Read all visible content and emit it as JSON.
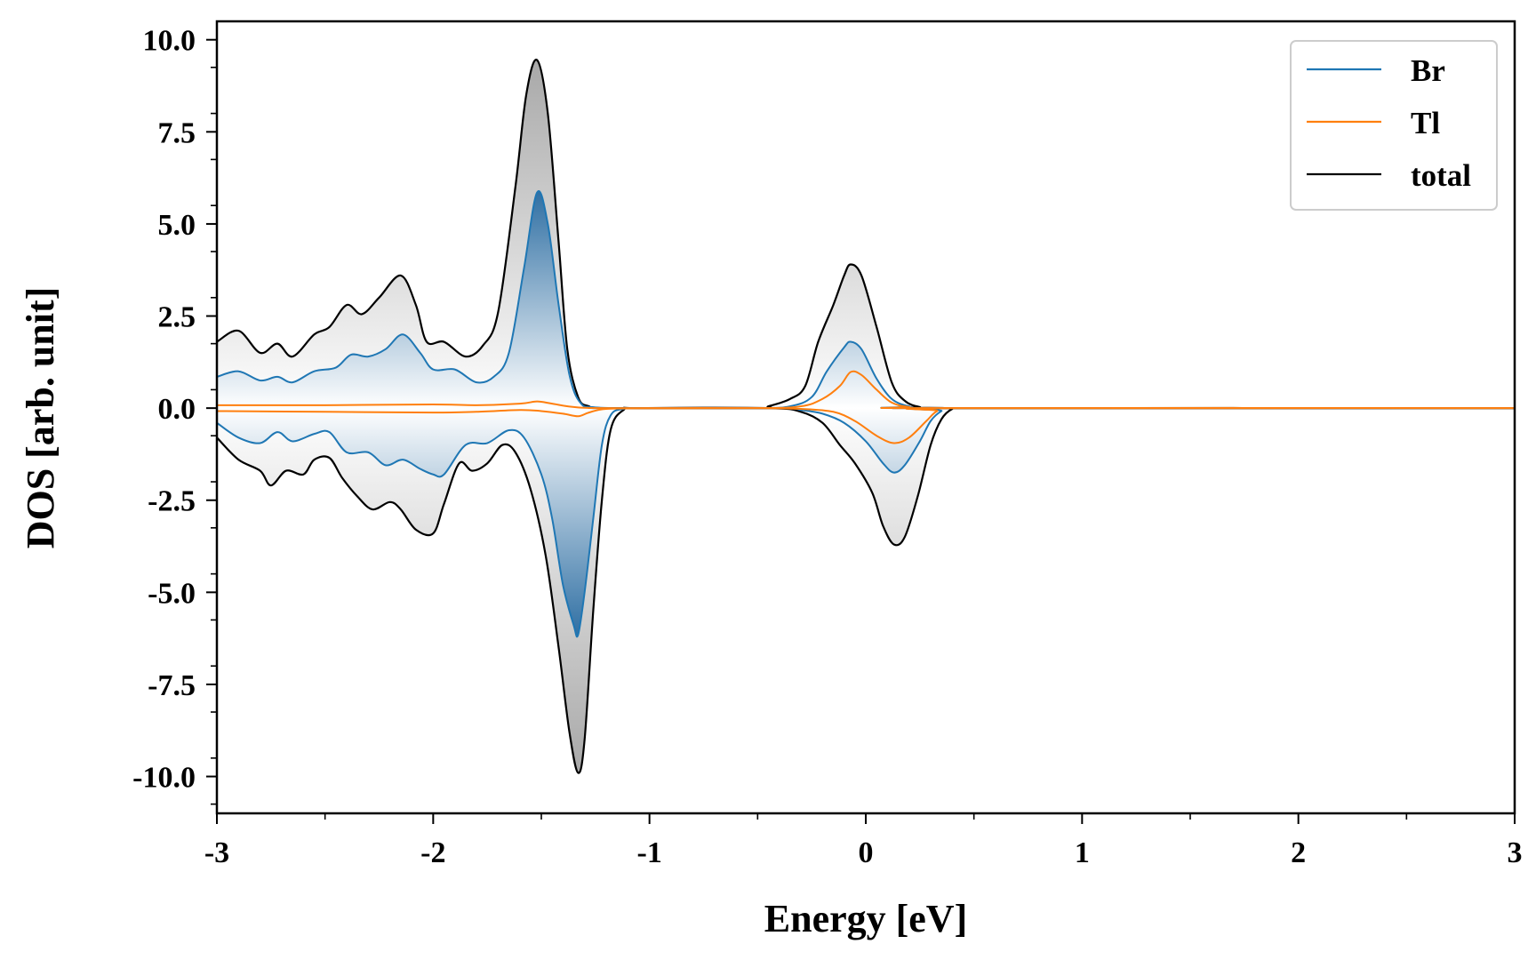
{
  "chart_data": {
    "type": "line",
    "xlabel": "Energy [eV]",
    "ylabel": "DOS [arb. unit]",
    "xlim": [
      -3,
      3
    ],
    "ylim": [
      -11,
      10.5
    ],
    "x_ticks": [
      -3,
      -2,
      -1,
      0,
      1,
      2,
      3
    ],
    "x_tick_labels": [
      "-3",
      "-2",
      "-1",
      "0",
      "1",
      "2",
      "3"
    ],
    "y_ticks": [
      10,
      7.5,
      5,
      2.5,
      0,
      -2.5,
      -5,
      -7.5,
      -10
    ],
    "y_tick_labels": [
      "10.0",
      "7.5",
      "5.0",
      "2.5",
      "0.0",
      "-2.5",
      "-5.0",
      "-7.5",
      "-10.0"
    ],
    "grid": false,
    "legend_position": "top-right",
    "colors": {
      "Br": "#1f77b4",
      "Tl": "#ff7f0e",
      "total": "#000000",
      "total_fill": "#bdbdbd",
      "br_fill": "#2f6fa3"
    },
    "series": [
      {
        "name": "Br",
        "spin": "up",
        "points": [
          [
            -3.0,
            0.85
          ],
          [
            -2.9,
            1.0
          ],
          [
            -2.8,
            0.75
          ],
          [
            -2.72,
            0.85
          ],
          [
            -2.65,
            0.7
          ],
          [
            -2.55,
            1.0
          ],
          [
            -2.45,
            1.1
          ],
          [
            -2.38,
            1.45
          ],
          [
            -2.3,
            1.4
          ],
          [
            -2.22,
            1.6
          ],
          [
            -2.14,
            2.0
          ],
          [
            -2.06,
            1.5
          ],
          [
            -2.0,
            1.05
          ],
          [
            -1.9,
            1.05
          ],
          [
            -1.8,
            0.7
          ],
          [
            -1.72,
            0.85
          ],
          [
            -1.65,
            1.5
          ],
          [
            -1.58,
            3.8
          ],
          [
            -1.52,
            5.85
          ],
          [
            -1.47,
            5.0
          ],
          [
            -1.42,
            2.8
          ],
          [
            -1.37,
            0.9
          ],
          [
            -1.32,
            0.15
          ],
          [
            -1.25,
            0.02
          ],
          [
            -1.0,
            0.0
          ],
          [
            -0.5,
            0.0
          ],
          [
            -0.35,
            0.05
          ],
          [
            -0.25,
            0.3
          ],
          [
            -0.18,
            1.0
          ],
          [
            -0.1,
            1.65
          ],
          [
            -0.07,
            1.8
          ],
          [
            -0.02,
            1.6
          ],
          [
            0.05,
            0.8
          ],
          [
            0.12,
            0.25
          ],
          [
            0.2,
            0.05
          ],
          [
            0.3,
            0.0
          ],
          [
            3.0,
            0.0
          ]
        ]
      },
      {
        "name": "Br",
        "spin": "down",
        "points": [
          [
            -3.0,
            -0.4
          ],
          [
            -2.9,
            -0.8
          ],
          [
            -2.8,
            -0.95
          ],
          [
            -2.72,
            -0.65
          ],
          [
            -2.65,
            -0.9
          ],
          [
            -2.55,
            -0.7
          ],
          [
            -2.48,
            -0.65
          ],
          [
            -2.4,
            -1.2
          ],
          [
            -2.3,
            -1.2
          ],
          [
            -2.22,
            -1.55
          ],
          [
            -2.14,
            -1.4
          ],
          [
            -2.06,
            -1.65
          ],
          [
            -2.0,
            -1.8
          ],
          [
            -1.95,
            -1.8
          ],
          [
            -1.85,
            -1.0
          ],
          [
            -1.75,
            -0.95
          ],
          [
            -1.65,
            -0.6
          ],
          [
            -1.58,
            -0.8
          ],
          [
            -1.5,
            -1.8
          ],
          [
            -1.45,
            -3.0
          ],
          [
            -1.4,
            -4.8
          ],
          [
            -1.35,
            -5.9
          ],
          [
            -1.33,
            -6.15
          ],
          [
            -1.3,
            -5.0
          ],
          [
            -1.26,
            -3.0
          ],
          [
            -1.22,
            -1.0
          ],
          [
            -1.18,
            -0.2
          ],
          [
            -1.12,
            -0.02
          ],
          [
            -1.0,
            0.0
          ],
          [
            -0.4,
            0.0
          ],
          [
            -0.3,
            -0.05
          ],
          [
            -0.2,
            -0.15
          ],
          [
            -0.1,
            -0.4
          ],
          [
            0.0,
            -0.9
          ],
          [
            0.08,
            -1.5
          ],
          [
            0.13,
            -1.75
          ],
          [
            0.18,
            -1.55
          ],
          [
            0.25,
            -0.9
          ],
          [
            0.3,
            -0.35
          ],
          [
            0.35,
            -0.08
          ],
          [
            0.4,
            0.0
          ],
          [
            3.0,
            0.0
          ]
        ]
      },
      {
        "name": "Tl",
        "spin": "up",
        "points": [
          [
            -3.0,
            0.08
          ],
          [
            -2.5,
            0.08
          ],
          [
            -2.0,
            0.1
          ],
          [
            -1.8,
            0.08
          ],
          [
            -1.6,
            0.12
          ],
          [
            -1.52,
            0.18
          ],
          [
            -1.45,
            0.12
          ],
          [
            -1.35,
            0.03
          ],
          [
            -1.2,
            0.0
          ],
          [
            -0.5,
            0.0
          ],
          [
            -0.3,
            0.05
          ],
          [
            -0.2,
            0.25
          ],
          [
            -0.12,
            0.6
          ],
          [
            -0.07,
            0.98
          ],
          [
            -0.02,
            0.9
          ],
          [
            0.05,
            0.5
          ],
          [
            0.12,
            0.15
          ],
          [
            0.2,
            0.03
          ],
          [
            0.3,
            0.0
          ],
          [
            3.0,
            0.0
          ]
        ]
      },
      {
        "name": "Tl",
        "spin": "down",
        "points": [
          [
            -3.0,
            -0.08
          ],
          [
            -2.5,
            -0.1
          ],
          [
            -2.0,
            -0.12
          ],
          [
            -1.8,
            -0.1
          ],
          [
            -1.6,
            -0.05
          ],
          [
            -1.5,
            -0.08
          ],
          [
            -1.4,
            -0.15
          ],
          [
            -1.33,
            -0.22
          ],
          [
            -1.28,
            -0.12
          ],
          [
            -1.2,
            -0.02
          ],
          [
            -1.0,
            0.0
          ],
          [
            -0.5,
            0.0
          ],
          [
            -0.3,
            -0.02
          ],
          [
            -0.15,
            -0.1
          ],
          [
            -0.05,
            -0.35
          ],
          [
            0.05,
            -0.75
          ],
          [
            0.13,
            -0.95
          ],
          [
            0.2,
            -0.8
          ],
          [
            0.28,
            -0.35
          ],
          [
            0.33,
            -0.08
          ],
          [
            0.4,
            0.0
          ],
          [
            3.0,
            0.0
          ]
        ]
      },
      {
        "name": "total",
        "spin": "up",
        "points": [
          [
            -3.0,
            1.8
          ],
          [
            -2.9,
            2.1
          ],
          [
            -2.8,
            1.5
          ],
          [
            -2.72,
            1.75
          ],
          [
            -2.65,
            1.4
          ],
          [
            -2.55,
            2.0
          ],
          [
            -2.48,
            2.2
          ],
          [
            -2.4,
            2.8
          ],
          [
            -2.33,
            2.55
          ],
          [
            -2.25,
            3.0
          ],
          [
            -2.15,
            3.6
          ],
          [
            -2.08,
            2.8
          ],
          [
            -2.03,
            1.8
          ],
          [
            -1.95,
            1.8
          ],
          [
            -1.85,
            1.4
          ],
          [
            -1.77,
            1.7
          ],
          [
            -1.7,
            2.6
          ],
          [
            -1.62,
            6.0
          ],
          [
            -1.57,
            8.5
          ],
          [
            -1.52,
            9.45
          ],
          [
            -1.47,
            8.0
          ],
          [
            -1.42,
            4.5
          ],
          [
            -1.38,
            1.6
          ],
          [
            -1.33,
            0.3
          ],
          [
            -1.28,
            0.05
          ],
          [
            -1.2,
            0.0
          ],
          [
            -0.5,
            0.0
          ],
          [
            -0.45,
            0.05
          ],
          [
            -0.35,
            0.25
          ],
          [
            -0.28,
            0.6
          ],
          [
            -0.22,
            1.8
          ],
          [
            -0.15,
            2.8
          ],
          [
            -0.1,
            3.6
          ],
          [
            -0.07,
            3.9
          ],
          [
            -0.02,
            3.6
          ],
          [
            0.05,
            2.2
          ],
          [
            0.12,
            0.7
          ],
          [
            0.18,
            0.2
          ],
          [
            0.25,
            0.03
          ],
          [
            0.35,
            0.0
          ],
          [
            3.0,
            0.0
          ]
        ]
      },
      {
        "name": "total",
        "spin": "down",
        "points": [
          [
            -3.0,
            -0.8
          ],
          [
            -2.9,
            -1.4
          ],
          [
            -2.8,
            -1.7
          ],
          [
            -2.75,
            -2.1
          ],
          [
            -2.68,
            -1.7
          ],
          [
            -2.6,
            -1.8
          ],
          [
            -2.55,
            -1.4
          ],
          [
            -2.48,
            -1.35
          ],
          [
            -2.42,
            -1.9
          ],
          [
            -2.35,
            -2.4
          ],
          [
            -2.28,
            -2.75
          ],
          [
            -2.2,
            -2.55
          ],
          [
            -2.15,
            -2.75
          ],
          [
            -2.08,
            -3.3
          ],
          [
            -2.0,
            -3.4
          ],
          [
            -1.95,
            -2.6
          ],
          [
            -1.88,
            -1.5
          ],
          [
            -1.82,
            -1.7
          ],
          [
            -1.75,
            -1.5
          ],
          [
            -1.68,
            -1.0
          ],
          [
            -1.62,
            -1.2
          ],
          [
            -1.55,
            -2.2
          ],
          [
            -1.48,
            -4.0
          ],
          [
            -1.42,
            -6.5
          ],
          [
            -1.37,
            -8.8
          ],
          [
            -1.33,
            -9.9
          ],
          [
            -1.3,
            -9.0
          ],
          [
            -1.26,
            -5.5
          ],
          [
            -1.22,
            -2.5
          ],
          [
            -1.18,
            -0.6
          ],
          [
            -1.12,
            -0.05
          ],
          [
            -1.05,
            0.0
          ],
          [
            -0.45,
            0.0
          ],
          [
            -0.3,
            -0.1
          ],
          [
            -0.2,
            -0.4
          ],
          [
            -0.12,
            -1.0
          ],
          [
            -0.05,
            -1.5
          ],
          [
            0.03,
            -2.3
          ],
          [
            0.08,
            -3.2
          ],
          [
            0.13,
            -3.7
          ],
          [
            0.18,
            -3.5
          ],
          [
            0.24,
            -2.4
          ],
          [
            0.3,
            -1.0
          ],
          [
            0.35,
            -0.3
          ],
          [
            0.4,
            -0.02
          ],
          [
            0.45,
            0.0
          ],
          [
            3.0,
            0.0
          ]
        ]
      }
    ],
    "legend": [
      "Br",
      "Tl",
      "total"
    ]
  }
}
